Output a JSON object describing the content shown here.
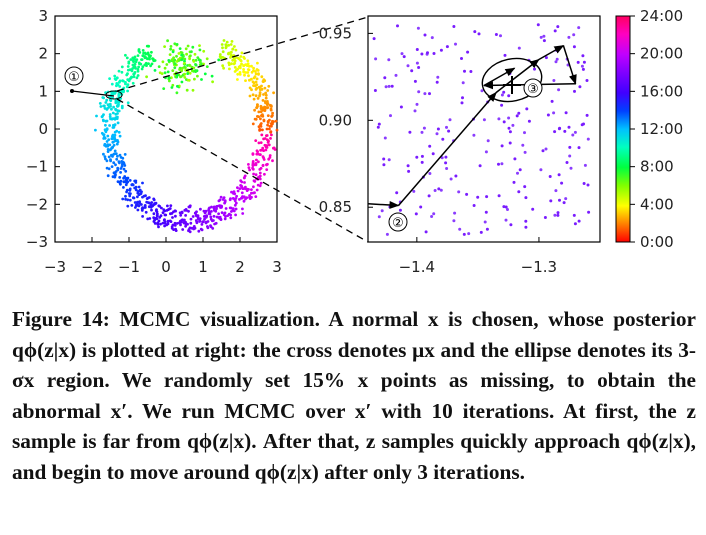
{
  "chart_data": [
    {
      "type": "scatter",
      "panel": "left",
      "xlim": [
        -3,
        3
      ],
      "ylim": [
        -3,
        3
      ],
      "xticks": [
        "−3",
        "−2",
        "−1",
        "0",
        "1",
        "2",
        "3"
      ],
      "yticks": [
        "−3",
        "−2",
        "−1",
        "0",
        "1",
        "2",
        "3"
      ],
      "grid": false,
      "description_of_points": "ring-shaped 2D latent embedding colored by time of day",
      "marker_label": "①",
      "marker_point": [
        -2.5,
        1.0
      ]
    },
    {
      "type": "scatter",
      "panel": "right",
      "xlim": [
        -1.44,
        -1.25
      ],
      "ylim": [
        0.83,
        0.96
      ],
      "xticks": [
        "−1.4",
        "−1.3"
      ],
      "yticks": [
        "0.85",
        "0.90",
        "0.95"
      ],
      "mcmc_path": [
        [
          -1.44,
          0.852
        ],
        [
          -1.415,
          0.851
        ],
        [
          -1.335,
          0.916
        ],
        [
          -1.3,
          0.935
        ],
        [
          -1.28,
          0.943
        ],
        [
          -1.27,
          0.921
        ],
        [
          -1.345,
          0.92
        ],
        [
          -1.32,
          0.93
        ]
      ],
      "mu_x": [
        -1.325,
        0.925
      ],
      "labels": [
        "②",
        "③"
      ]
    }
  ],
  "colorbar": {
    "ticks": [
      "0:00",
      "4:00",
      "8:00",
      "12:00",
      "16:00",
      "20:00",
      "24:00"
    ]
  },
  "caption": {
    "label": "Figure 14:",
    "text": "MCMC visualization. A normal x is chosen, whose posterior qϕ(z|x) is plotted at right: the cross denotes μx and the ellipse denotes its 3-σx region. We randomly set 15% x points as missing, to obtain the abnormal x′. We run MCMC over x′ with 10 iterations. At first, the z sample is far from qϕ(z|x). After that, z samples quickly approach qϕ(z|x), and begin to move around qϕ(z|x) after only 3 iterations."
  },
  "colors": {
    "colormap": [
      "#ff0000",
      "#ff8000",
      "#ffff00",
      "#80ff00",
      "#00ff40",
      "#00ffc0",
      "#00c0ff",
      "#0040ff",
      "#4000ff",
      "#8000ff",
      "#c000ff",
      "#ff00c0",
      "#ff0060"
    ]
  }
}
